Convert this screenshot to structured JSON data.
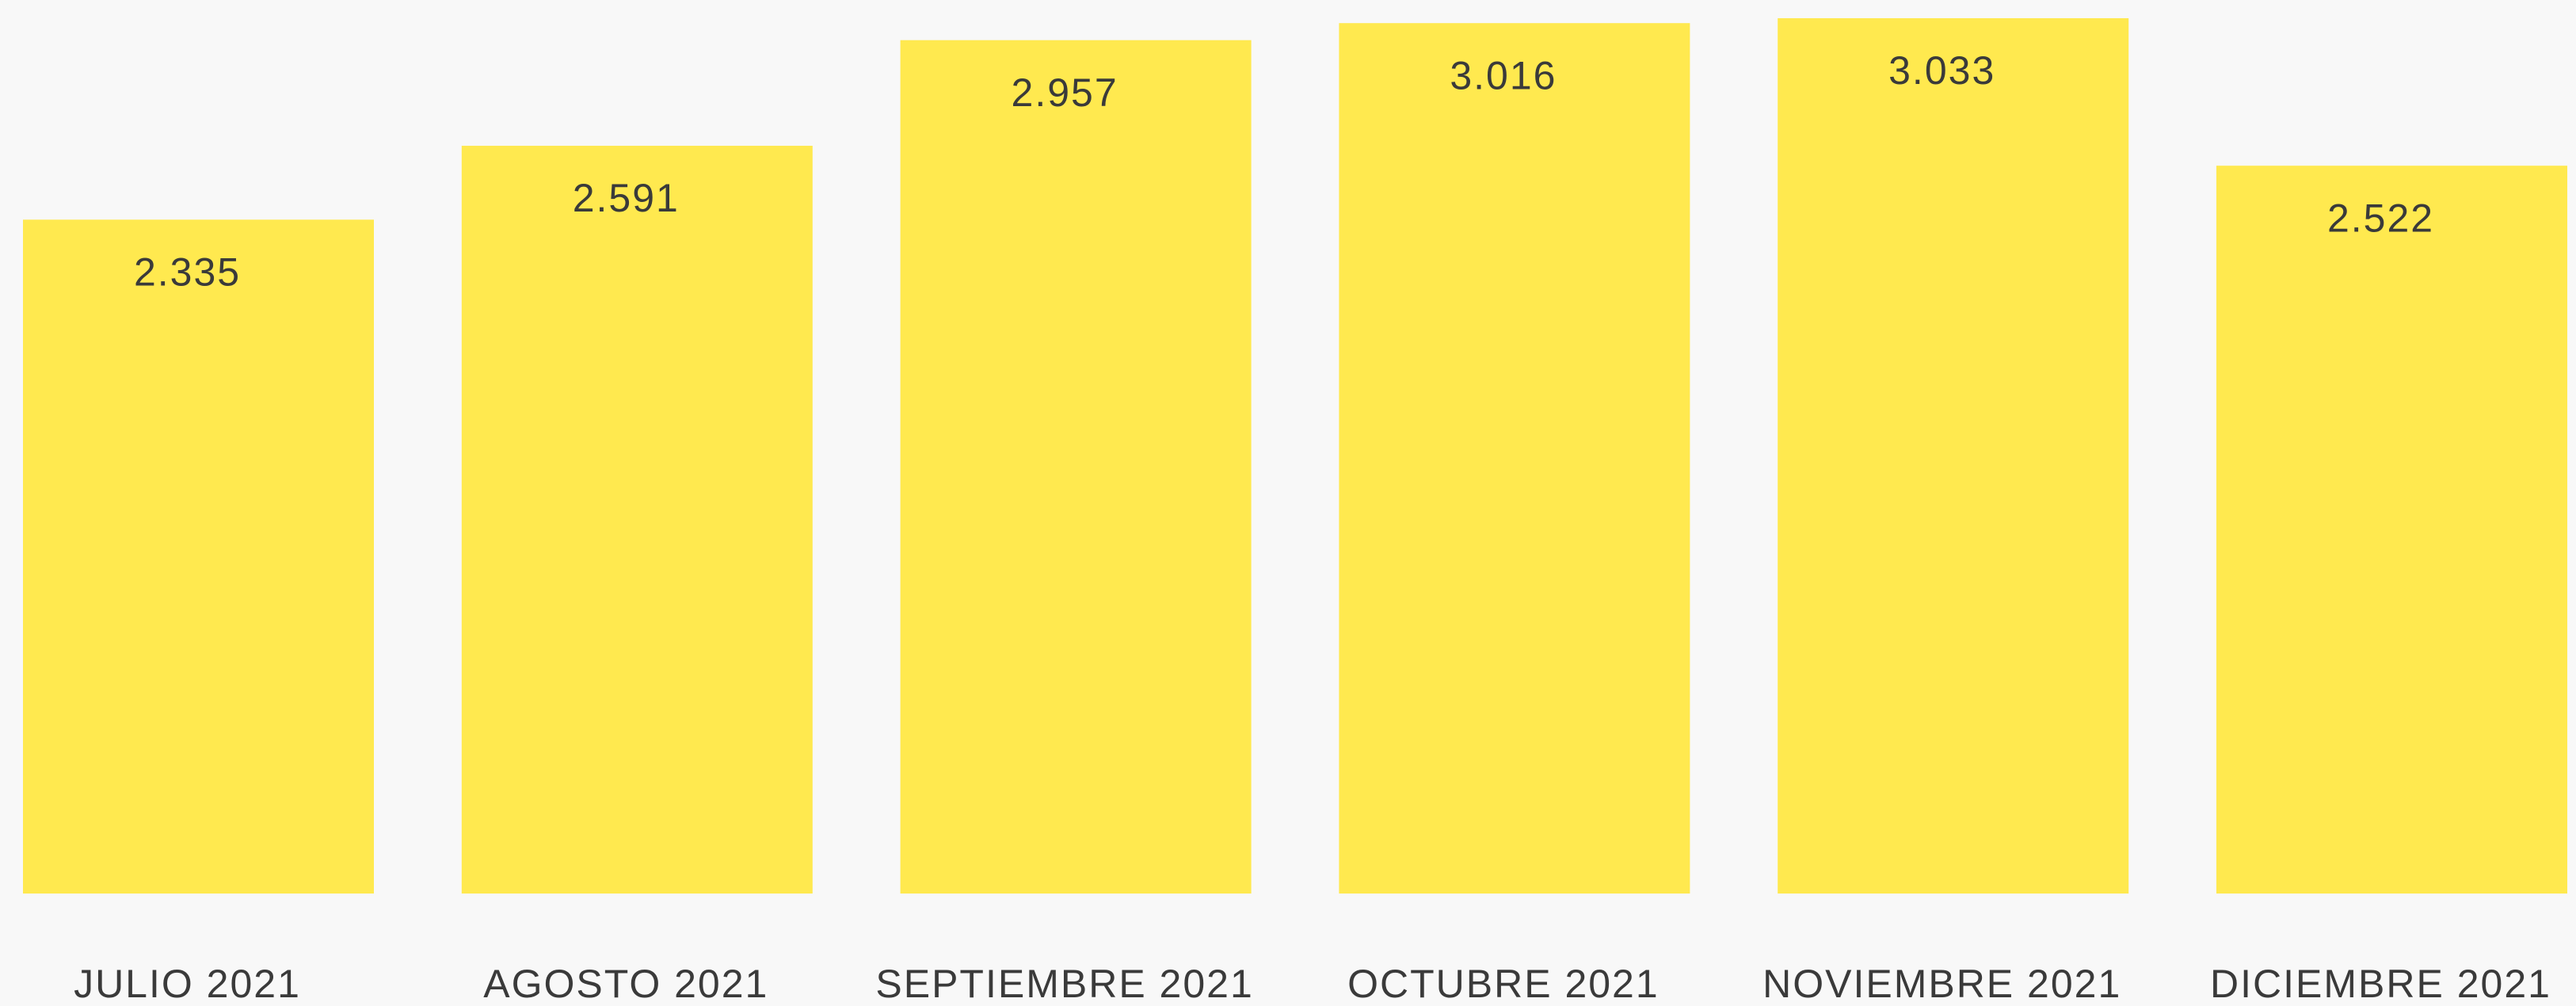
{
  "chart_data": {
    "type": "bar",
    "categories": [
      "JULIO 2021",
      "AGOSTO 2021",
      "SEPTIEMBRE 2021",
      "OCTUBRE 2021",
      "NOVIEMBRE 2021",
      "DICIEMBRE 2021"
    ],
    "values": [
      2335,
      2591,
      2957,
      3016,
      3033,
      2522
    ],
    "value_labels": [
      "2.335",
      "2.591",
      "2.957",
      "3.016",
      "3.033",
      "2.522"
    ],
    "color": "#ffe94f"
  }
}
